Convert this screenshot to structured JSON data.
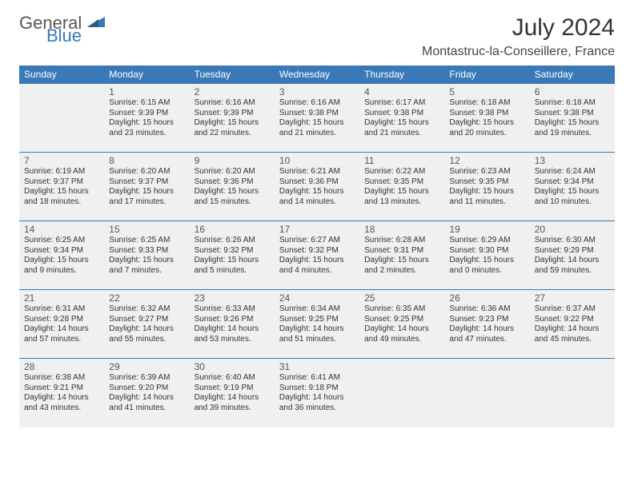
{
  "logo": {
    "part1": "General",
    "part2": "Blue"
  },
  "title": "July 2024",
  "location": "Montastruc-la-Conseillere, France",
  "colors": {
    "header_bg": "#3a79b7",
    "header_text": "#ffffff",
    "cell_bg": "#f0f0f0",
    "empty_bg": "#e6e6e6",
    "border": "#3a79b7",
    "page_bg": "#ffffff",
    "logo_gray": "#555555",
    "logo_blue": "#3a79b7"
  },
  "typography": {
    "title_fontsize": 30,
    "location_fontsize": 16,
    "weekday_fontsize": 12,
    "daynum_fontsize": 12,
    "info_fontsize": 10
  },
  "weekdays": [
    "Sunday",
    "Monday",
    "Tuesday",
    "Wednesday",
    "Thursday",
    "Friday",
    "Saturday"
  ],
  "weeks": [
    [
      null,
      {
        "n": "1",
        "sr": "Sunrise: 6:15 AM",
        "ss": "Sunset: 9:39 PM",
        "d1": "Daylight: 15 hours",
        "d2": "and 23 minutes."
      },
      {
        "n": "2",
        "sr": "Sunrise: 6:16 AM",
        "ss": "Sunset: 9:39 PM",
        "d1": "Daylight: 15 hours",
        "d2": "and 22 minutes."
      },
      {
        "n": "3",
        "sr": "Sunrise: 6:16 AM",
        "ss": "Sunset: 9:38 PM",
        "d1": "Daylight: 15 hours",
        "d2": "and 21 minutes."
      },
      {
        "n": "4",
        "sr": "Sunrise: 6:17 AM",
        "ss": "Sunset: 9:38 PM",
        "d1": "Daylight: 15 hours",
        "d2": "and 21 minutes."
      },
      {
        "n": "5",
        "sr": "Sunrise: 6:18 AM",
        "ss": "Sunset: 9:38 PM",
        "d1": "Daylight: 15 hours",
        "d2": "and 20 minutes."
      },
      {
        "n": "6",
        "sr": "Sunrise: 6:18 AM",
        "ss": "Sunset: 9:38 PM",
        "d1": "Daylight: 15 hours",
        "d2": "and 19 minutes."
      }
    ],
    [
      {
        "n": "7",
        "sr": "Sunrise: 6:19 AM",
        "ss": "Sunset: 9:37 PM",
        "d1": "Daylight: 15 hours",
        "d2": "and 18 minutes."
      },
      {
        "n": "8",
        "sr": "Sunrise: 6:20 AM",
        "ss": "Sunset: 9:37 PM",
        "d1": "Daylight: 15 hours",
        "d2": "and 17 minutes."
      },
      {
        "n": "9",
        "sr": "Sunrise: 6:20 AM",
        "ss": "Sunset: 9:36 PM",
        "d1": "Daylight: 15 hours",
        "d2": "and 15 minutes."
      },
      {
        "n": "10",
        "sr": "Sunrise: 6:21 AM",
        "ss": "Sunset: 9:36 PM",
        "d1": "Daylight: 15 hours",
        "d2": "and 14 minutes."
      },
      {
        "n": "11",
        "sr": "Sunrise: 6:22 AM",
        "ss": "Sunset: 9:35 PM",
        "d1": "Daylight: 15 hours",
        "d2": "and 13 minutes."
      },
      {
        "n": "12",
        "sr": "Sunrise: 6:23 AM",
        "ss": "Sunset: 9:35 PM",
        "d1": "Daylight: 15 hours",
        "d2": "and 11 minutes."
      },
      {
        "n": "13",
        "sr": "Sunrise: 6:24 AM",
        "ss": "Sunset: 9:34 PM",
        "d1": "Daylight: 15 hours",
        "d2": "and 10 minutes."
      }
    ],
    [
      {
        "n": "14",
        "sr": "Sunrise: 6:25 AM",
        "ss": "Sunset: 9:34 PM",
        "d1": "Daylight: 15 hours",
        "d2": "and 9 minutes."
      },
      {
        "n": "15",
        "sr": "Sunrise: 6:25 AM",
        "ss": "Sunset: 9:33 PM",
        "d1": "Daylight: 15 hours",
        "d2": "and 7 minutes."
      },
      {
        "n": "16",
        "sr": "Sunrise: 6:26 AM",
        "ss": "Sunset: 9:32 PM",
        "d1": "Daylight: 15 hours",
        "d2": "and 5 minutes."
      },
      {
        "n": "17",
        "sr": "Sunrise: 6:27 AM",
        "ss": "Sunset: 9:32 PM",
        "d1": "Daylight: 15 hours",
        "d2": "and 4 minutes."
      },
      {
        "n": "18",
        "sr": "Sunrise: 6:28 AM",
        "ss": "Sunset: 9:31 PM",
        "d1": "Daylight: 15 hours",
        "d2": "and 2 minutes."
      },
      {
        "n": "19",
        "sr": "Sunrise: 6:29 AM",
        "ss": "Sunset: 9:30 PM",
        "d1": "Daylight: 15 hours",
        "d2": "and 0 minutes."
      },
      {
        "n": "20",
        "sr": "Sunrise: 6:30 AM",
        "ss": "Sunset: 9:29 PM",
        "d1": "Daylight: 14 hours",
        "d2": "and 59 minutes."
      }
    ],
    [
      {
        "n": "21",
        "sr": "Sunrise: 6:31 AM",
        "ss": "Sunset: 9:28 PM",
        "d1": "Daylight: 14 hours",
        "d2": "and 57 minutes."
      },
      {
        "n": "22",
        "sr": "Sunrise: 6:32 AM",
        "ss": "Sunset: 9:27 PM",
        "d1": "Daylight: 14 hours",
        "d2": "and 55 minutes."
      },
      {
        "n": "23",
        "sr": "Sunrise: 6:33 AM",
        "ss": "Sunset: 9:26 PM",
        "d1": "Daylight: 14 hours",
        "d2": "and 53 minutes."
      },
      {
        "n": "24",
        "sr": "Sunrise: 6:34 AM",
        "ss": "Sunset: 9:25 PM",
        "d1": "Daylight: 14 hours",
        "d2": "and 51 minutes."
      },
      {
        "n": "25",
        "sr": "Sunrise: 6:35 AM",
        "ss": "Sunset: 9:25 PM",
        "d1": "Daylight: 14 hours",
        "d2": "and 49 minutes."
      },
      {
        "n": "26",
        "sr": "Sunrise: 6:36 AM",
        "ss": "Sunset: 9:23 PM",
        "d1": "Daylight: 14 hours",
        "d2": "and 47 minutes."
      },
      {
        "n": "27",
        "sr": "Sunrise: 6:37 AM",
        "ss": "Sunset: 9:22 PM",
        "d1": "Daylight: 14 hours",
        "d2": "and 45 minutes."
      }
    ],
    [
      {
        "n": "28",
        "sr": "Sunrise: 6:38 AM",
        "ss": "Sunset: 9:21 PM",
        "d1": "Daylight: 14 hours",
        "d2": "and 43 minutes."
      },
      {
        "n": "29",
        "sr": "Sunrise: 6:39 AM",
        "ss": "Sunset: 9:20 PM",
        "d1": "Daylight: 14 hours",
        "d2": "and 41 minutes."
      },
      {
        "n": "30",
        "sr": "Sunrise: 6:40 AM",
        "ss": "Sunset: 9:19 PM",
        "d1": "Daylight: 14 hours",
        "d2": "and 39 minutes."
      },
      {
        "n": "31",
        "sr": "Sunrise: 6:41 AM",
        "ss": "Sunset: 9:18 PM",
        "d1": "Daylight: 14 hours",
        "d2": "and 36 minutes."
      },
      null,
      null,
      null
    ]
  ]
}
